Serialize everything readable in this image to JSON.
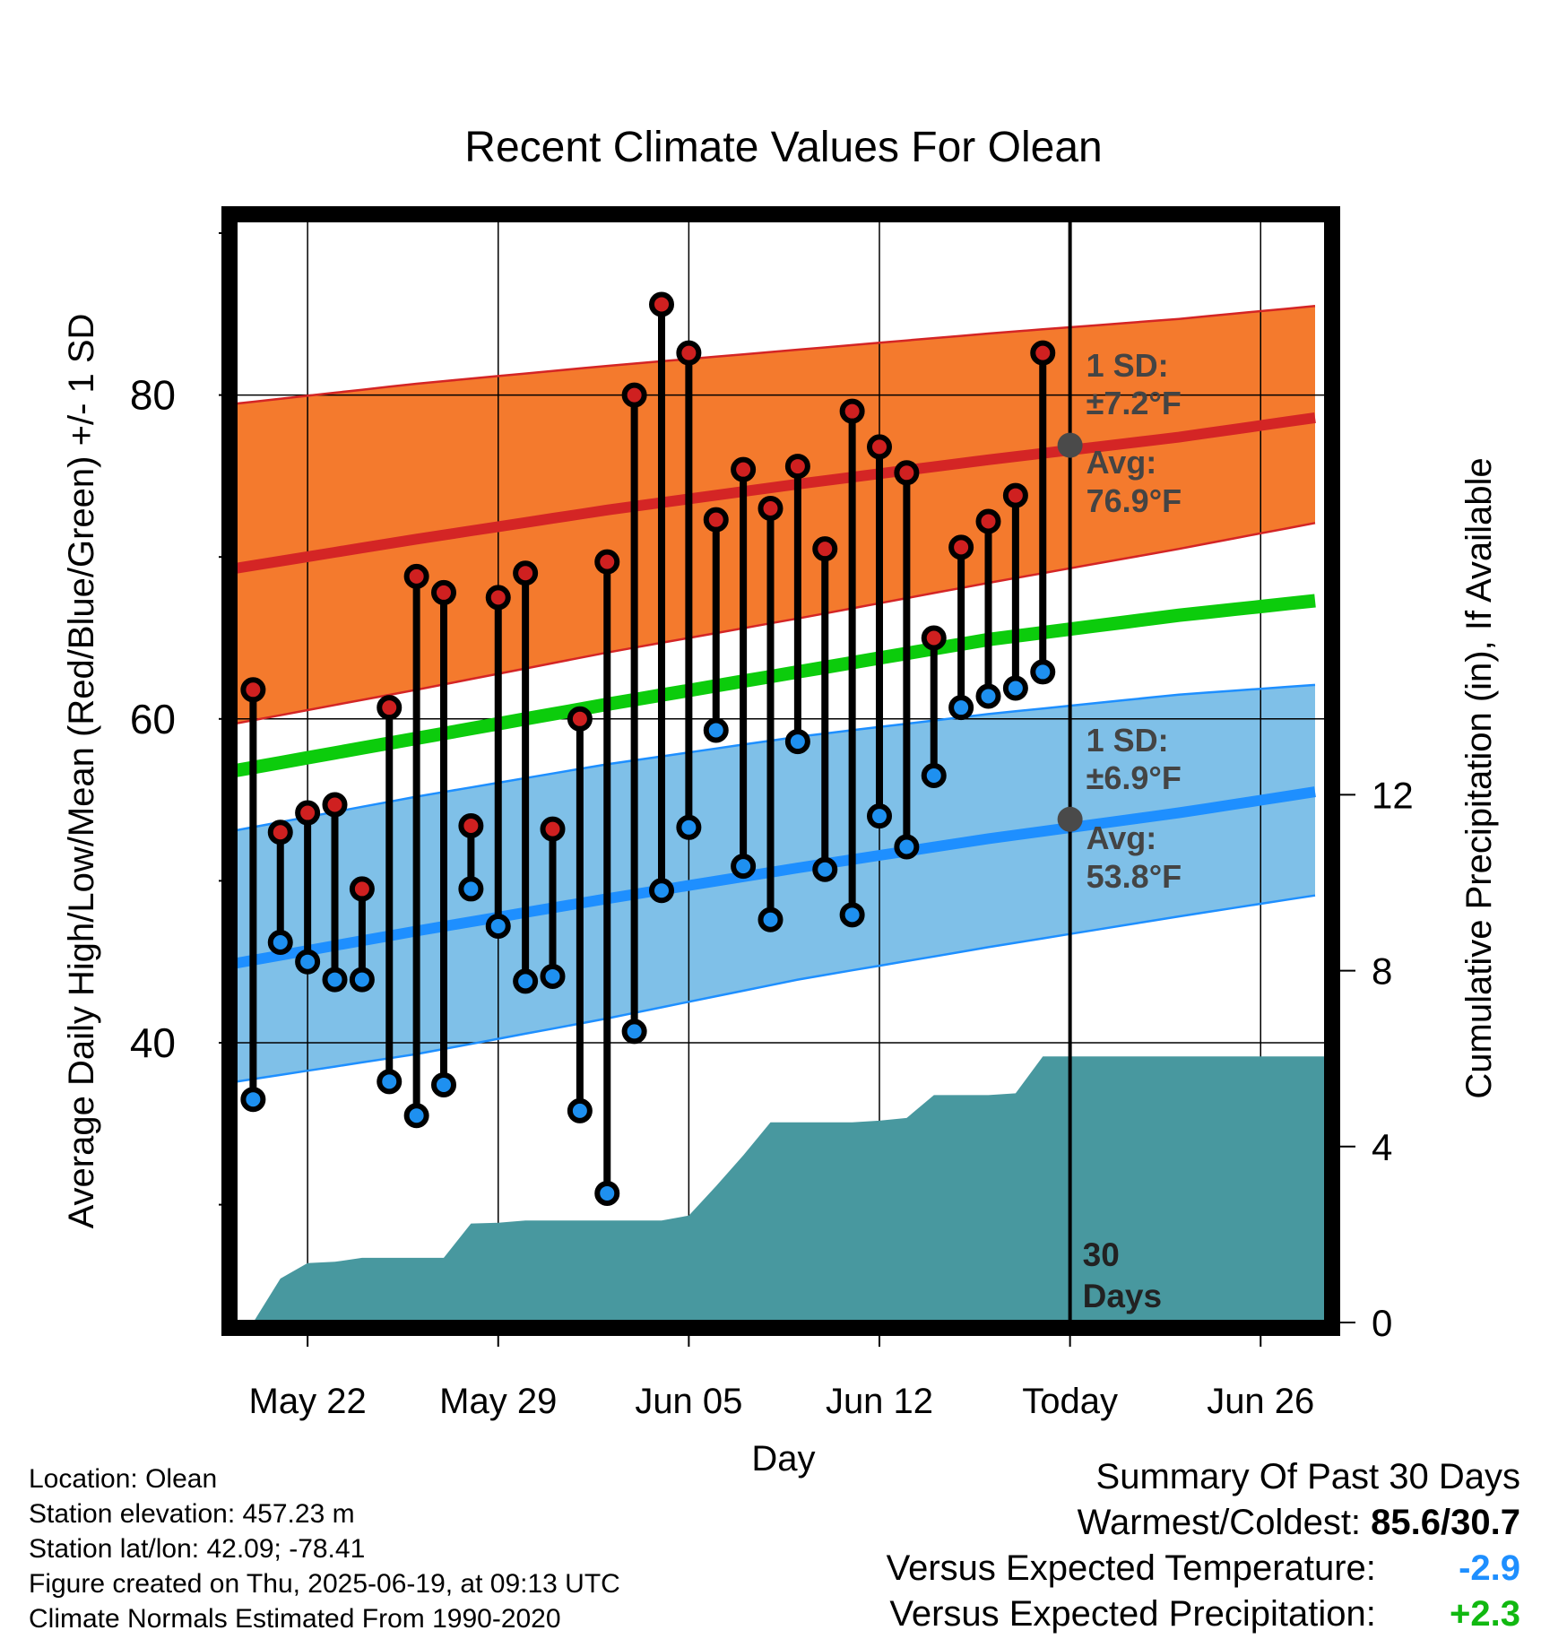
{
  "chart_data": {
    "type": "line",
    "title": "Recent Climate Values For Olean",
    "xlabel": "Day",
    "ylabel": "Average Daily High/Low/Mean (Red/Blue/Green) +/- 1 SD",
    "y2label": "Cumulative Precipitation (in), If Available",
    "ylim": [
      24,
      90
    ],
    "y2lim": [
      0,
      24.6
    ],
    "yticks": [
      40,
      60,
      80
    ],
    "y2ticks": [
      0,
      4,
      8,
      12
    ],
    "grid": true,
    "x_range_days": [
      "May 19",
      "Jun 28"
    ],
    "x_ticks": [
      {
        "date": "May 22",
        "label": "May 22"
      },
      {
        "date": "May 29",
        "label": "May 29"
      },
      {
        "date": "Jun 05",
        "label": "Jun 05"
      },
      {
        "date": "Jun 12",
        "label": "Jun 12"
      },
      {
        "date": "Jun 19",
        "label": "Today"
      },
      {
        "date": "Jun 26",
        "label": "Jun 26"
      }
    ],
    "normals": {
      "dates": [
        "May 19",
        "May 26",
        "Jun 02",
        "Jun 09",
        "Jun 16",
        "Jun 23",
        "Jun 28"
      ],
      "high_avg": [
        69.2,
        71.1,
        72.9,
        74.5,
        76.0,
        77.4,
        78.6
      ],
      "high_upper": [
        79.4,
        80.7,
        81.8,
        82.8,
        83.8,
        84.7,
        85.5
      ],
      "high_lower": [
        59.6,
        61.8,
        64.1,
        66.2,
        68.4,
        70.5,
        72.1
      ],
      "mean_avg": [
        56.7,
        58.8,
        60.9,
        62.9,
        64.9,
        66.4,
        67.3
      ],
      "low_avg": [
        44.8,
        46.9,
        48.9,
        50.8,
        52.6,
        54.2,
        55.5
      ],
      "low_upper": [
        53.0,
        55.2,
        57.2,
        58.9,
        60.3,
        61.5,
        62.1
      ],
      "low_lower": [
        37.5,
        39.3,
        41.5,
        43.9,
        45.9,
        47.8,
        49.1
      ]
    },
    "daily": {
      "dates": [
        "May 20",
        "May 21",
        "May 22",
        "May 23",
        "May 24",
        "May 25",
        "May 26",
        "May 27",
        "May 28",
        "May 29",
        "May 30",
        "May 31",
        "Jun 01",
        "Jun 02",
        "Jun 03",
        "Jun 04",
        "Jun 05",
        "Jun 06",
        "Jun 07",
        "Jun 08",
        "Jun 09",
        "Jun 10",
        "Jun 11",
        "Jun 12",
        "Jun 13",
        "Jun 14",
        "Jun 15",
        "Jun 16",
        "Jun 17",
        "Jun 18"
      ],
      "high": [
        61.8,
        53.0,
        54.2,
        54.7,
        49.5,
        60.7,
        68.8,
        67.8,
        53.4,
        67.5,
        69.0,
        53.2,
        60.0,
        69.7,
        80.0,
        85.6,
        82.6,
        72.3,
        75.4,
        73.0,
        75.6,
        70.5,
        79.0,
        76.8,
        75.2,
        65.0,
        70.6,
        72.2,
        73.8,
        82.6
      ],
      "low": [
        36.5,
        46.2,
        45.0,
        43.9,
        43.9,
        37.6,
        35.5,
        37.4,
        49.5,
        47.2,
        43.8,
        44.1,
        35.8,
        30.7,
        40.7,
        49.4,
        53.3,
        59.3,
        50.9,
        47.6,
        58.6,
        50.7,
        47.9,
        54.0,
        52.1,
        56.5,
        60.7,
        61.4,
        61.9,
        62.9
      ]
    },
    "precip_cumulative": {
      "dates": [
        "May 20",
        "May 21",
        "May 22",
        "May 23",
        "May 24",
        "May 25",
        "May 26",
        "May 27",
        "May 28",
        "May 29",
        "May 30",
        "May 31",
        "Jun 01",
        "Jun 02",
        "Jun 03",
        "Jun 04",
        "Jun 05",
        "Jun 06",
        "Jun 07",
        "Jun 08",
        "Jun 09",
        "Jun 10",
        "Jun 11",
        "Jun 12",
        "Jun 13",
        "Jun 14",
        "Jun 15",
        "Jun 16",
        "Jun 17",
        "Jun 18",
        "Jun 28"
      ],
      "values": [
        0.0,
        1.0,
        1.35,
        1.38,
        1.47,
        1.47,
        1.47,
        1.47,
        2.25,
        2.27,
        2.32,
        2.32,
        2.32,
        2.32,
        2.32,
        2.32,
        2.43,
        3.1,
        3.8,
        4.55,
        4.55,
        4.55,
        4.55,
        4.59,
        4.65,
        5.17,
        5.17,
        5.17,
        5.21,
        6.05,
        6.05
      ]
    },
    "annotations": {
      "high_sd": "1 SD:",
      "high_sd_value": "±7.2°F",
      "high_avg_label": "Avg:",
      "high_avg_value": "76.9°F",
      "low_sd": "1 SD:",
      "low_sd_value": "±6.9°F",
      "low_avg_label": "Avg:",
      "low_avg_value": "53.8°F",
      "days_number": "30",
      "days_word": "Days",
      "today_high_avg": 76.9,
      "today_low_avg": 53.8
    },
    "colors": {
      "high_band": "#f47a2d",
      "high_line": "#d42525",
      "mean_line": "#0ccc0c",
      "low_band": "#7fc0e8",
      "low_line": "#1e8fff",
      "precip": "#48989f",
      "high_dot": "#cf2020",
      "low_dot": "#1e90f0"
    }
  },
  "footer": {
    "location": "Location: Olean",
    "elevation": "Station elevation: 457.23 m",
    "latlon": "Station lat/lon: 42.09; -78.41",
    "created": "Figure created on Thu, 2025-06-19, at 09:13 UTC",
    "normals": "Climate Normals Estimated From 1990-2020"
  },
  "summary": {
    "title": "Summary Of Past 30 Days",
    "warmest_label": "Warmest/Coldest:",
    "warmest_value": "85.6/30.7",
    "temp_label": "Versus Expected Temperature:",
    "temp_value": "-2.9",
    "temp_color": "#1e8fff",
    "precip_label": "Versus Expected Precipitation:",
    "precip_value": "+2.3",
    "precip_color": "#11b811"
  }
}
